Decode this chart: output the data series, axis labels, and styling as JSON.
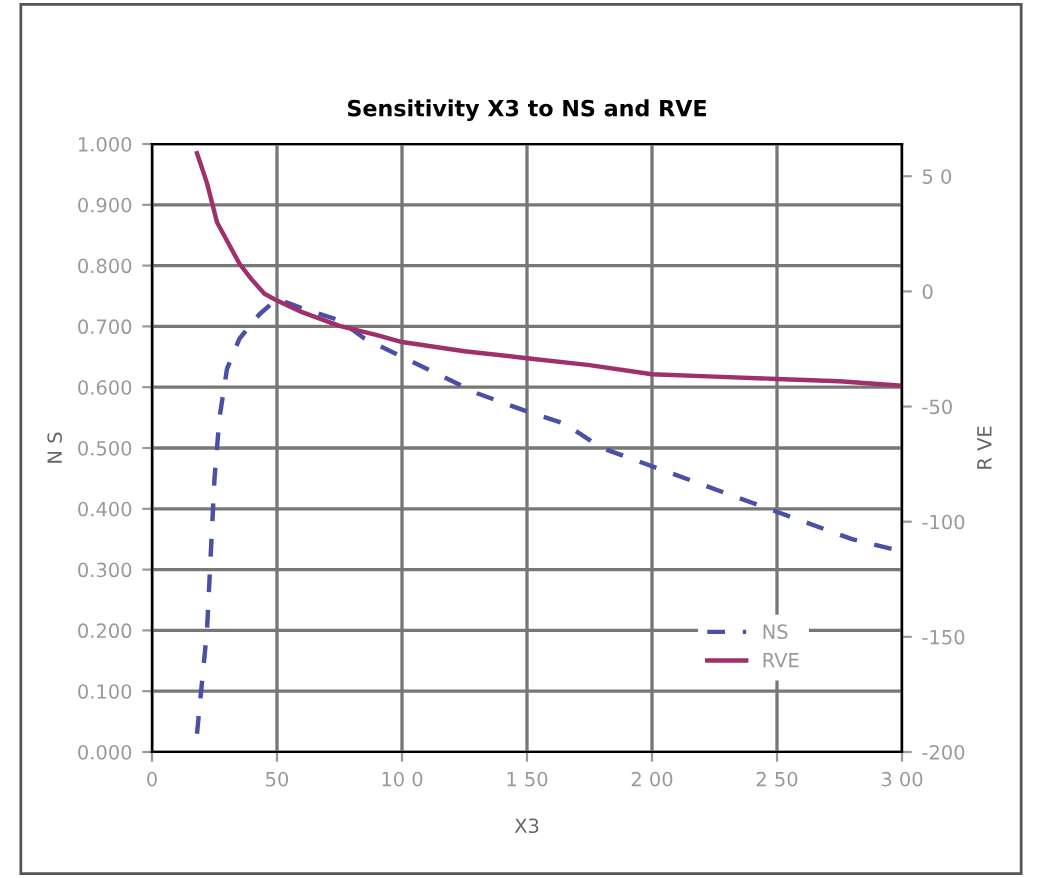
{
  "chart_data": {
    "type": "line",
    "title": "Sensitivity X3 to NS and RVE",
    "xlabel": "X3",
    "ylabel": "N S",
    "y2label": "R VE",
    "series": [
      {
        "name": "NS",
        "color": "#4a50a8",
        "line_style": "dashed",
        "x": [
          18,
          22,
          25,
          27,
          30,
          35,
          43,
          50,
          60,
          75,
          85,
          100,
          115,
          130,
          150,
          165,
          180,
          200,
          220,
          240,
          260,
          280,
          300
        ],
        "values": [
          0.03,
          0.2,
          0.45,
          0.55,
          0.63,
          0.68,
          0.72,
          0.745,
          0.73,
          0.71,
          0.68,
          0.65,
          0.62,
          0.59,
          0.56,
          0.54,
          0.5,
          0.47,
          0.44,
          0.41,
          0.38,
          0.35,
          0.33
        ]
      },
      {
        "name": "RVE",
        "color": "#a0306a",
        "line_style": "solid",
        "axis": "y2",
        "x": [
          18,
          22,
          26,
          30,
          35,
          40,
          45,
          50,
          60,
          75,
          90,
          100,
          125,
          150,
          175,
          200,
          225,
          250,
          275,
          300
        ],
        "values": [
          60,
          47,
          30,
          22,
          12,
          5,
          -1,
          -4,
          -9,
          -15,
          -19,
          -22,
          -26,
          -29,
          -32,
          -36,
          -37,
          -38,
          -39,
          -41
        ]
      }
    ],
    "xlim": [
      0,
      300
    ],
    "xticks": [
      0,
      50,
      {
        "value": 100,
        "label": "10 0"
      },
      {
        "value": 150,
        "label": "1 50"
      },
      {
        "value": 200,
        "label": "2 00"
      },
      {
        "value": 250,
        "label": "2 50"
      },
      {
        "value": 300,
        "label": "3 00"
      }
    ],
    "ylim": [
      0,
      1
    ],
    "yticks": [
      {
        "value": 0,
        "label": "0.000"
      },
      {
        "value": 0.1,
        "label": "0.100"
      },
      {
        "value": 0.2,
        "label": "0.200"
      },
      {
        "value": 0.3,
        "label": "0.300"
      },
      {
        "value": 0.4,
        "label": "0.400"
      },
      {
        "value": 0.5,
        "label": "0.500"
      },
      {
        "value": 0.6,
        "label": "0.600"
      },
      {
        "value": 0.7,
        "label": "0.700"
      },
      {
        "value": 0.8,
        "label": "0.800"
      },
      {
        "value": 0.9,
        "label": "0.900"
      },
      {
        "value": 1,
        "label": "1.000"
      }
    ],
    "y2lim": [
      -200,
      64
    ],
    "y2ticks": [
      -200,
      -150,
      -100,
      -50,
      0,
      {
        "value": 50,
        "label": "5 0"
      }
    ],
    "grid": true,
    "legend": "bottom right",
    "marker": "none"
  }
}
